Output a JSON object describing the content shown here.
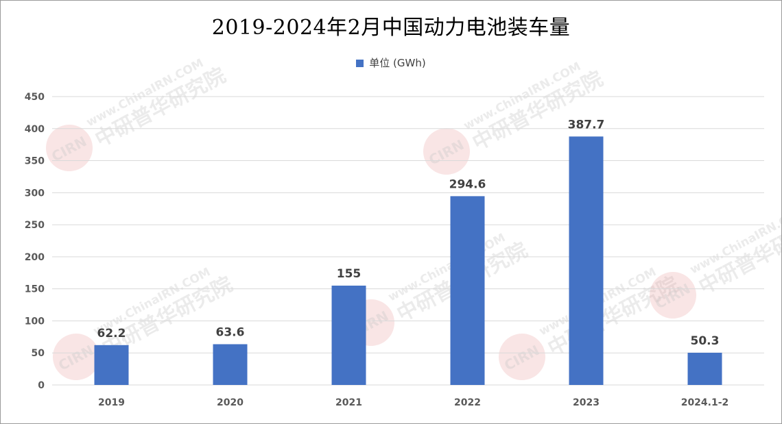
{
  "chart_data": {
    "type": "bar",
    "title": "2019-2024年2月中国动力电池装车量",
    "legend": {
      "position": "top",
      "entries": [
        "单位 (GWh)"
      ]
    },
    "categories": [
      "2019",
      "2020",
      "2021",
      "2022",
      "2023",
      "2024.1-2"
    ],
    "series": [
      {
        "name": "单位 (GWh)",
        "values": [
          62.2,
          63.6,
          155,
          294.6,
          387.7,
          50.3
        ],
        "color": "#4472C4"
      }
    ],
    "data_labels": [
      "62.2",
      "63.6",
      "155",
      "294.6",
      "387.7",
      "50.3"
    ],
    "yticks": [
      "0",
      "50",
      "100",
      "150",
      "200",
      "250",
      "300",
      "350",
      "400",
      "450"
    ],
    "ylim": [
      0,
      450
    ],
    "grid": true
  },
  "watermark": {
    "site": "www.ChinaIRN.COM",
    "name": "中研普华研究院",
    "logo": "CIRN"
  }
}
